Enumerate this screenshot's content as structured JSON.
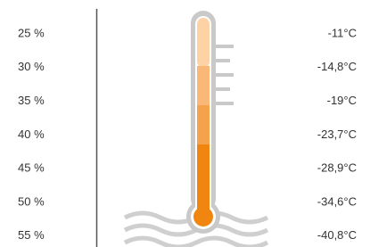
{
  "rows": [
    {
      "percent": "25 %",
      "temperature": "-11°C"
    },
    {
      "percent": "30 %",
      "temperature": "-14,8°C"
    },
    {
      "percent": "35 %",
      "temperature": "-19°C"
    },
    {
      "percent": "40 %",
      "temperature": "-23,7°C"
    },
    {
      "percent": "45 %",
      "temperature": "-28,9°C"
    },
    {
      "percent": "50 %",
      "temperature": "-34,6°C"
    },
    {
      "percent": "55 %",
      "temperature": "-40,8°C"
    }
  ]
}
